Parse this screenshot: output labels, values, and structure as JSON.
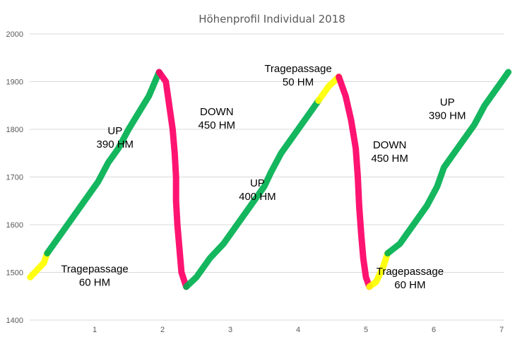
{
  "chart_data": {
    "type": "line",
    "title": "Höhenprofil Individual 2018",
    "xlabel": "",
    "ylabel": "",
    "xlim": [
      0,
      7
    ],
    "ylim": [
      1400,
      2000
    ],
    "grid": true,
    "y_ticks": [
      "1400",
      "1500",
      "1600",
      "1700",
      "1800",
      "1900",
      "2000"
    ],
    "x_ticks": [
      "1",
      "2",
      "3",
      "4",
      "5",
      "6",
      "7"
    ],
    "colors": {
      "up": "#00b050",
      "down": "#ff0066",
      "carry": "#ffff00"
    },
    "segments": [
      {
        "kind": "carry",
        "points": [
          [
            0.05,
            1490
          ],
          [
            0.25,
            1520
          ],
          [
            0.3,
            1540
          ]
        ]
      },
      {
        "kind": "up",
        "points": [
          [
            0.3,
            1540
          ],
          [
            0.45,
            1570
          ],
          [
            0.65,
            1610
          ],
          [
            0.85,
            1650
          ],
          [
            1.05,
            1690
          ],
          [
            1.2,
            1730
          ],
          [
            1.35,
            1760
          ],
          [
            1.5,
            1800
          ],
          [
            1.65,
            1835
          ],
          [
            1.8,
            1870
          ],
          [
            1.95,
            1920
          ]
        ]
      },
      {
        "kind": "down",
        "points": [
          [
            1.95,
            1920
          ],
          [
            2.05,
            1900
          ],
          [
            2.1,
            1850
          ],
          [
            2.15,
            1800
          ],
          [
            2.18,
            1750
          ],
          [
            2.2,
            1700
          ],
          [
            2.2,
            1650
          ],
          [
            2.22,
            1600
          ],
          [
            2.25,
            1550
          ],
          [
            2.28,
            1500
          ],
          [
            2.35,
            1470
          ]
        ]
      },
      {
        "kind": "up",
        "points": [
          [
            2.35,
            1470
          ],
          [
            2.5,
            1490
          ],
          [
            2.7,
            1530
          ],
          [
            2.9,
            1560
          ],
          [
            3.1,
            1600
          ],
          [
            3.3,
            1640
          ],
          [
            3.5,
            1680
          ],
          [
            3.6,
            1710
          ],
          [
            3.75,
            1750
          ],
          [
            3.95,
            1790
          ],
          [
            4.15,
            1830
          ],
          [
            4.3,
            1860
          ]
        ]
      },
      {
        "kind": "carry",
        "points": [
          [
            4.3,
            1860
          ],
          [
            4.45,
            1890
          ],
          [
            4.6,
            1910
          ]
        ]
      },
      {
        "kind": "down",
        "points": [
          [
            4.6,
            1910
          ],
          [
            4.7,
            1870
          ],
          [
            4.78,
            1820
          ],
          [
            4.85,
            1760
          ],
          [
            4.88,
            1700
          ],
          [
            4.9,
            1640
          ],
          [
            4.93,
            1580
          ],
          [
            4.96,
            1530
          ],
          [
            5.0,
            1490
          ],
          [
            5.05,
            1470
          ]
        ]
      },
      {
        "kind": "carry",
        "points": [
          [
            5.05,
            1470
          ],
          [
            5.15,
            1480
          ],
          [
            5.25,
            1510
          ],
          [
            5.32,
            1540
          ]
        ]
      },
      {
        "kind": "up",
        "points": [
          [
            5.32,
            1540
          ],
          [
            5.5,
            1560
          ],
          [
            5.7,
            1600
          ],
          [
            5.9,
            1640
          ],
          [
            6.05,
            1680
          ],
          [
            6.15,
            1720
          ],
          [
            6.3,
            1750
          ],
          [
            6.45,
            1780
          ],
          [
            6.6,
            1810
          ],
          [
            6.75,
            1850
          ],
          [
            6.95,
            1890
          ],
          [
            7.1,
            1920
          ]
        ]
      }
    ],
    "annotations": [
      {
        "lines": [
          "UP",
          "390 HM"
        ],
        "x": 1.3,
        "y": 1790
      },
      {
        "lines": [
          "DOWN",
          "450 HM"
        ],
        "x": 2.8,
        "y": 1830
      },
      {
        "lines": [
          "UP",
          "400 HM"
        ],
        "x": 3.4,
        "y": 1680
      },
      {
        "lines": [
          "Tragepassage",
          "50 HM"
        ],
        "x": 4.0,
        "y": 1920
      },
      {
        "lines": [
          "DOWN",
          "450 HM"
        ],
        "x": 5.35,
        "y": 1760
      },
      {
        "lines": [
          "UP",
          "390 HM"
        ],
        "x": 6.2,
        "y": 1850
      },
      {
        "lines": [
          "Tragepassage",
          "60 HM"
        ],
        "x": 1.0,
        "y": 1500
      },
      {
        "lines": [
          "Tragepassage",
          "60 HM"
        ],
        "x": 5.65,
        "y": 1495
      }
    ]
  }
}
